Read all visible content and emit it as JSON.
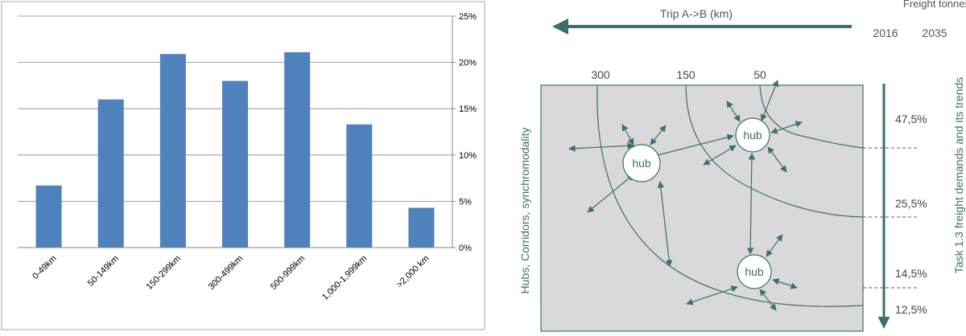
{
  "chart_data": {
    "type": "bar",
    "categories": [
      "0-49km",
      "50-149km",
      "150-299km",
      "300-499km",
      "500-999km",
      "1,000-1,999km",
      ">2,000 km"
    ],
    "values": [
      6.7,
      16.0,
      20.9,
      18.0,
      21.1,
      13.3,
      4.3
    ],
    "ylim": [
      0,
      25
    ],
    "yticks": [
      "0%",
      "5%",
      "10%",
      "15%",
      "20%",
      "25%"
    ],
    "y_axis_side": "right",
    "grid": true,
    "bar_color": "#4f81bd"
  },
  "diagram": {
    "trip_label": "Trip A->B (km)",
    "freight_label": "Freight tonnes",
    "years": [
      "2016",
      "2035"
    ],
    "distance_markers": [
      "300",
      "150",
      "50"
    ],
    "left_label": "Hubs, Corridors, synchromodality",
    "right_label": "Task 1.3 freight demands and its trends",
    "shares": [
      "47,5%",
      "25,5%",
      "14,5%",
      "12,5%"
    ],
    "hubs": [
      "hub",
      "hub",
      "hub"
    ],
    "accent_color": "#3d6e6e",
    "area_color": "#d9d9d9"
  }
}
